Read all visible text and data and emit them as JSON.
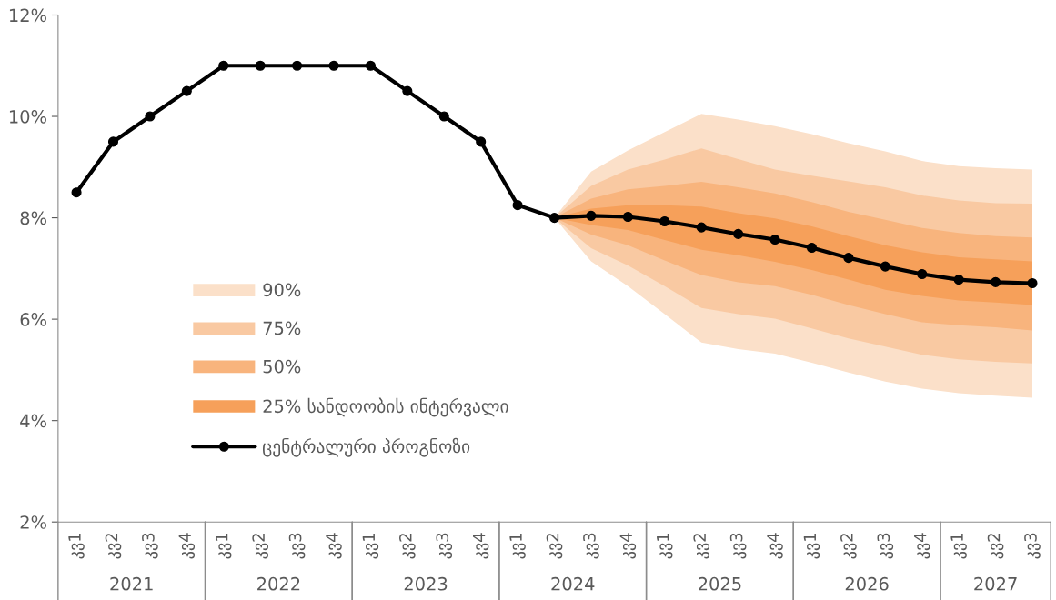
{
  "chart_data": {
    "type": "line",
    "categories": [
      "კვ1",
      "კვ2",
      "კვ3",
      "კვ4",
      "კვ1",
      "კვ2",
      "კვ3",
      "კვ4",
      "კვ1",
      "კვ2",
      "კვ3",
      "კვ4",
      "კვ1",
      "კვ2",
      "კვ3",
      "კვ4",
      "კვ1",
      "კვ2",
      "კვ3",
      "კვ4",
      "კვ1",
      "კვ2",
      "კვ3",
      "კვ4",
      "კვ1",
      "კვ2",
      "კვ3"
    ],
    "annotations": [
      "2021",
      "2022",
      "2023",
      "2024",
      "2025",
      "2026",
      "2027"
    ],
    "series": [
      {
        "name": "90%",
        "color": "#fbe0c9",
        "values": [
          null,
          null,
          null,
          null,
          null,
          null,
          null,
          null,
          null,
          null,
          null,
          null,
          null,
          null,
          null,
          null,
          null,
          null,
          null,
          null,
          null,
          null,
          null,
          null,
          null,
          null,
          null
        ],
        "lower": [
          null,
          null,
          null,
          null,
          null,
          null,
          null,
          null,
          null,
          null,
          null,
          null,
          null,
          8.0,
          7.14,
          6.65,
          6.1,
          5.54,
          5.41,
          5.32,
          5.14,
          4.95,
          4.77,
          4.63,
          4.54,
          4.49,
          4.45
        ],
        "upper": [
          null,
          null,
          null,
          null,
          null,
          null,
          null,
          null,
          null,
          null,
          null,
          null,
          null,
          8.0,
          8.91,
          9.33,
          9.69,
          10.05,
          9.94,
          9.81,
          9.65,
          9.47,
          9.31,
          9.12,
          9.02,
          8.98,
          8.95
        ]
      },
      {
        "name": "75%",
        "color": "#f9c9a2",
        "values": [
          null,
          null,
          null,
          null,
          null,
          null,
          null,
          null,
          null,
          null,
          null,
          null,
          null,
          null,
          null,
          null,
          null,
          null,
          null,
          null,
          null,
          null,
          null,
          null,
          null,
          null,
          null
        ],
        "lower": [
          null,
          null,
          null,
          null,
          null,
          null,
          null,
          null,
          null,
          null,
          null,
          null,
          null,
          8.0,
          7.4,
          7.06,
          6.65,
          6.22,
          6.1,
          6.01,
          5.82,
          5.62,
          5.46,
          5.3,
          5.21,
          5.16,
          5.13
        ],
        "upper": [
          null,
          null,
          null,
          null,
          null,
          null,
          null,
          null,
          null,
          null,
          null,
          null,
          null,
          8.0,
          8.63,
          8.95,
          9.15,
          9.37,
          9.16,
          8.95,
          8.83,
          8.72,
          8.6,
          8.44,
          8.34,
          8.29,
          8.28
        ]
      },
      {
        "name": "50%",
        "color": "#f8b47d",
        "values": [
          null,
          null,
          null,
          null,
          null,
          null,
          null,
          null,
          null,
          null,
          null,
          null,
          null,
          null,
          null,
          null,
          null,
          null,
          null,
          null,
          null,
          null,
          null,
          null,
          null,
          null,
          null
        ],
        "lower": [
          null,
          null,
          null,
          null,
          null,
          null,
          null,
          null,
          null,
          null,
          null,
          null,
          null,
          8.0,
          7.67,
          7.46,
          7.16,
          6.87,
          6.73,
          6.65,
          6.48,
          6.28,
          6.1,
          5.94,
          5.88,
          5.84,
          5.78
        ],
        "upper": [
          null,
          null,
          null,
          null,
          null,
          null,
          null,
          null,
          null,
          null,
          null,
          null,
          null,
          8.0,
          8.38,
          8.56,
          8.63,
          8.71,
          8.6,
          8.48,
          8.31,
          8.12,
          7.96,
          7.8,
          7.7,
          7.64,
          7.61
        ]
      },
      {
        "name": "25% სანდოობის ინტერვალი",
        "color": "#f6a05a",
        "values": [
          null,
          null,
          null,
          null,
          null,
          null,
          null,
          null,
          null,
          null,
          null,
          null,
          null,
          null,
          null,
          null,
          null,
          null,
          null,
          null,
          null,
          null,
          null,
          null,
          null,
          null,
          null
        ],
        "lower": [
          null,
          null,
          null,
          null,
          null,
          null,
          null,
          null,
          null,
          null,
          null,
          null,
          null,
          8.0,
          7.86,
          7.76,
          7.56,
          7.37,
          7.26,
          7.13,
          6.97,
          6.78,
          6.58,
          6.46,
          6.37,
          6.33,
          6.28
        ],
        "upper": [
          null,
          null,
          null,
          null,
          null,
          null,
          null,
          null,
          null,
          null,
          null,
          null,
          null,
          8.0,
          8.18,
          8.25,
          8.25,
          8.22,
          8.09,
          7.99,
          7.83,
          7.64,
          7.46,
          7.32,
          7.22,
          7.18,
          7.14
        ]
      },
      {
        "name": "ცენტრალური პროგნოზი",
        "color": "#000000",
        "marker": "circle",
        "values": [
          8.5,
          9.5,
          10,
          10.5,
          11,
          11,
          11,
          11,
          11,
          10.5,
          10,
          9.5,
          8.25,
          8.0,
          8.04,
          8.02,
          7.93,
          7.81,
          7.68,
          7.57,
          7.41,
          7.21,
          7.04,
          6.89,
          6.78,
          6.73,
          6.71
        ]
      }
    ],
    "ylim": [
      2,
      12
    ],
    "yticks": [
      {
        "value": 2,
        "label": "2%"
      },
      {
        "value": 4,
        "label": "4%"
      },
      {
        "value": 6,
        "label": "6%"
      },
      {
        "value": 8,
        "label": "8%"
      },
      {
        "value": 10,
        "label": "10%"
      },
      {
        "value": 12,
        "label": "12%"
      }
    ],
    "grid": false,
    "legend": "center left"
  }
}
